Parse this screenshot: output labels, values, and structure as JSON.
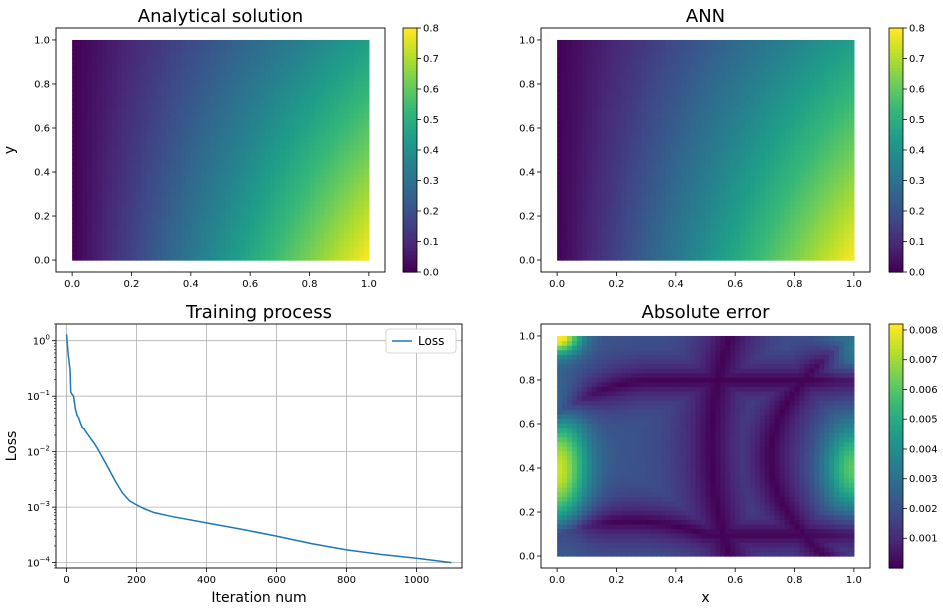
{
  "chart_data": [
    {
      "type": "heatmap",
      "title": "Analytical solution",
      "xlabel": "",
      "ylabel": "y",
      "xlim": [
        0,
        1
      ],
      "ylim": [
        0,
        1
      ],
      "x_ticks": [
        "0.0",
        "0.2",
        "0.4",
        "0.6",
        "0.8",
        "1.0"
      ],
      "y_ticks": [
        "0.0",
        "0.2",
        "0.4",
        "0.6",
        "0.8",
        "1.0"
      ],
      "colormap": "viridis",
      "colorbar": {
        "min": 0.0,
        "max": 0.8,
        "ticks": [
          "0.0",
          "0.1",
          "0.2",
          "0.3",
          "0.4",
          "0.5",
          "0.6",
          "0.7",
          "0.8"
        ]
      },
      "corner_values": {
        "x0_y0": 0.0,
        "x0_y1": 0.0,
        "x1_y1": 0.45,
        "x1_y0": 0.8
      }
    },
    {
      "type": "heatmap",
      "title": "ANN",
      "xlabel": "",
      "ylabel": "",
      "xlim": [
        0,
        1
      ],
      "ylim": [
        0,
        1
      ],
      "x_ticks": [
        "0.0",
        "0.2",
        "0.4",
        "0.6",
        "0.8",
        "1.0"
      ],
      "y_ticks": [
        "0.0",
        "0.2",
        "0.4",
        "0.6",
        "0.8",
        "1.0"
      ],
      "colormap": "viridis",
      "colorbar": {
        "min": 0.0,
        "max": 0.8,
        "ticks": [
          "0.0",
          "0.1",
          "0.2",
          "0.3",
          "0.4",
          "0.5",
          "0.6",
          "0.7",
          "0.8"
        ]
      },
      "corner_values": {
        "x0_y0": 0.0,
        "x0_y1": 0.0,
        "x1_y1": 0.45,
        "x1_y0": 0.8
      }
    },
    {
      "type": "line",
      "title": "Training process",
      "xlabel": "Iteration num",
      "ylabel": "Loss",
      "yscale": "log",
      "xlim": [
        -30,
        1130
      ],
      "ylim": [
        8e-05,
        2.0
      ],
      "x_ticks": [
        "0",
        "200",
        "400",
        "600",
        "800",
        "1000"
      ],
      "y_ticks": [
        {
          "base": "10",
          "exp": "0"
        },
        {
          "base": "10",
          "exp": "−1"
        },
        {
          "base": "10",
          "exp": "−2"
        },
        {
          "base": "10",
          "exp": "−3"
        },
        {
          "base": "10",
          "exp": "−4"
        }
      ],
      "grid": true,
      "legend": {
        "position": "top-right",
        "entries": [
          "Loss"
        ]
      },
      "series": [
        {
          "name": "Loss",
          "color": "#1f77b4",
          "x": [
            0,
            5,
            10,
            12,
            15,
            20,
            25,
            30,
            35,
            40,
            45,
            50,
            55,
            60,
            70,
            80,
            90,
            100,
            120,
            140,
            160,
            180,
            200,
            220,
            250,
            300,
            400,
            500,
            600,
            700,
            800,
            900,
            1000,
            1100
          ],
          "y": [
            1.3,
            0.55,
            0.3,
            0.12,
            0.11,
            0.1,
            0.06,
            0.045,
            0.04,
            0.032,
            0.027,
            0.026,
            0.023,
            0.021,
            0.017,
            0.014,
            0.011,
            0.0085,
            0.005,
            0.0029,
            0.0018,
            0.0013,
            0.0011,
            0.00095,
            0.0008,
            0.00068,
            0.00052,
            0.0004,
            0.0003,
            0.00022,
            0.00017,
            0.00014,
            0.00012,
            0.0001
          ]
        }
      ]
    },
    {
      "type": "heatmap",
      "title": "Absolute error",
      "xlabel": "x",
      "ylabel": "",
      "xlim": [
        0,
        1
      ],
      "ylim": [
        0,
        1
      ],
      "x_ticks": [
        "0.0",
        "0.2",
        "0.4",
        "0.6",
        "0.8",
        "1.0"
      ],
      "y_ticks": [
        "0.0",
        "0.2",
        "0.4",
        "0.6",
        "0.8",
        "1.0"
      ],
      "colormap": "viridis",
      "colorbar": {
        "min": 0.0,
        "max": 0.0082,
        "ticks": [
          "0.001",
          "0.002",
          "0.003",
          "0.004",
          "0.005",
          "0.006",
          "0.007",
          "0.008"
        ]
      }
    }
  ]
}
